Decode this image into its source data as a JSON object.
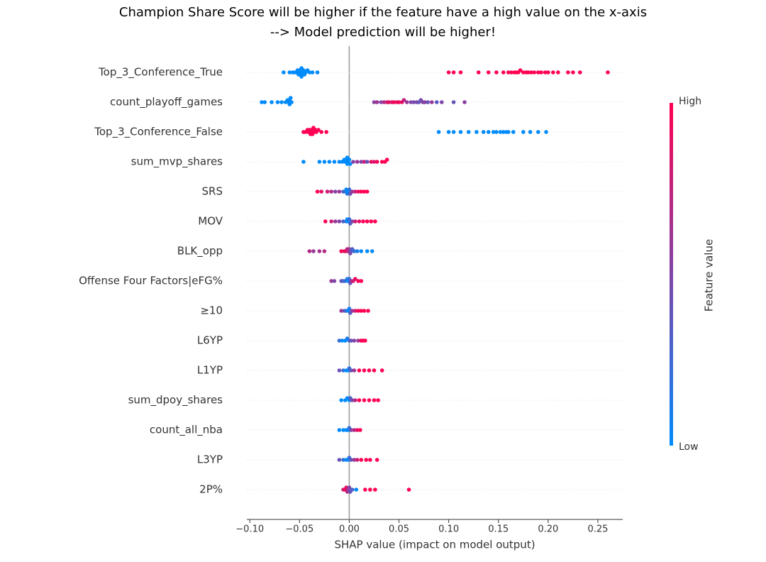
{
  "chart_data": {
    "type": "beeswarm",
    "title": "Champion Share Score will be higher if the feature have a high value on the x-axis",
    "subtitle": "--> Model prediction will be higher!",
    "x_label": "SHAP value (impact on model output)",
    "colorbar_label": "Feature value",
    "colorbar_high": "High",
    "colorbar_low": "Low",
    "colormap": [
      "#008bfb",
      "#ff0052"
    ],
    "xlim": [
      -0.103,
      0.275
    ],
    "xticks": [
      {
        "value": -0.1,
        "label": "−0.10"
      },
      {
        "value": -0.05,
        "label": "−0.05"
      },
      {
        "value": 0,
        "label": "0.00"
      },
      {
        "value": 0.05,
        "label": "0.05"
      },
      {
        "value": 0.1,
        "label": "0.10"
      },
      {
        "value": 0.15,
        "label": "0.15"
      },
      {
        "value": 0.2,
        "label": "0.20"
      },
      {
        "value": 0.25,
        "label": "0.25"
      }
    ],
    "series": [
      {
        "name": "Top_3_Conference_True",
        "shap_values": [
          -0.066,
          -0.06,
          -0.057,
          -0.055,
          -0.053,
          -0.052,
          -0.051,
          -0.05,
          -0.05,
          -0.049,
          -0.048,
          -0.048,
          -0.047,
          -0.046,
          -0.045,
          -0.044,
          -0.042,
          -0.04,
          -0.037,
          -0.032,
          0.1,
          0.105,
          0.112,
          0.13,
          0.14,
          0.148,
          0.155,
          0.16,
          0.163,
          0.166,
          0.168,
          0.17,
          0.172,
          0.175,
          0.178,
          0.18,
          0.183,
          0.186,
          0.19,
          0.193,
          0.197,
          0.2,
          0.205,
          0.21,
          0.22,
          0.225,
          0.232,
          0.26
        ],
        "feature_values": [
          0,
          0,
          0,
          0,
          0,
          0,
          0,
          0,
          0,
          0,
          0,
          0,
          0,
          0,
          0,
          0,
          0,
          0,
          0,
          0,
          1,
          1,
          1,
          1,
          1,
          1,
          1,
          1,
          1,
          1,
          1,
          1,
          1,
          1,
          1,
          1,
          1,
          1,
          1,
          1,
          1,
          1,
          1,
          1,
          1,
          1,
          1,
          1
        ]
      },
      {
        "name": "count_playoff_games",
        "shap_values": [
          -0.088,
          -0.085,
          -0.078,
          -0.072,
          -0.068,
          -0.064,
          -0.062,
          -0.061,
          -0.06,
          -0.06,
          -0.059,
          -0.058,
          0.025,
          0.028,
          0.032,
          0.035,
          0.038,
          0.04,
          0.043,
          0.045,
          0.048,
          0.05,
          0.053,
          0.055,
          0.058,
          0.062,
          0.065,
          0.068,
          0.07,
          0.072,
          0.074,
          0.076,
          0.079,
          0.083,
          0.088,
          0.093,
          0.105,
          0.116
        ],
        "feature_values": [
          0,
          0,
          0,
          0,
          0,
          0,
          0,
          0,
          0,
          0,
          0,
          0,
          0.55,
          0.6,
          0.5,
          0.7,
          0.8,
          0.9,
          0.85,
          0.95,
          0.9,
          0.95,
          0.9,
          0.75,
          0.6,
          0.5,
          0.45,
          0.5,
          0.4,
          0.45,
          0.5,
          0.55,
          0.4,
          0.6,
          0.35,
          0.5,
          0.4,
          0.55
        ]
      },
      {
        "name": "Top_3_Conference_False",
        "shap_values": [
          -0.046,
          -0.044,
          -0.042,
          -0.041,
          -0.04,
          -0.039,
          -0.038,
          -0.038,
          -0.037,
          -0.036,
          -0.035,
          -0.034,
          -0.033,
          -0.031,
          -0.028,
          -0.023,
          0.09,
          0.1,
          0.105,
          0.112,
          0.12,
          0.128,
          0.135,
          0.14,
          0.145,
          0.148,
          0.152,
          0.155,
          0.158,
          0.16,
          0.165,
          0.175,
          0.182,
          0.19,
          0.198
        ],
        "feature_values": [
          1,
          1,
          1,
          1,
          1,
          1,
          1,
          1,
          1,
          1,
          1,
          1,
          1,
          1,
          1,
          1,
          0,
          0,
          0,
          0,
          0,
          0,
          0,
          0,
          0,
          0,
          0,
          0,
          0,
          0,
          0,
          0,
          0,
          0,
          0
        ]
      },
      {
        "name": "sum_mvp_shares",
        "shap_values": [
          -0.046,
          -0.03,
          -0.025,
          -0.02,
          -0.015,
          -0.01,
          -0.007,
          -0.005,
          -0.004,
          -0.003,
          -0.002,
          -0.002,
          -0.001,
          0,
          0.001,
          0.004,
          0.008,
          0.012,
          0.015,
          0.018,
          0.022,
          0.025,
          0.028,
          0.033,
          0.036,
          0.038
        ],
        "feature_values": [
          0,
          0,
          0,
          0,
          0,
          0,
          0,
          0,
          0,
          0,
          0,
          0,
          0,
          0,
          0,
          0.5,
          0.6,
          0.5,
          0.8,
          0.4,
          0.9,
          0.85,
          0.95,
          1,
          1,
          1
        ]
      },
      {
        "name": "SRS",
        "shap_values": [
          -0.032,
          -0.028,
          -0.022,
          -0.018,
          -0.014,
          -0.01,
          -0.006,
          -0.004,
          -0.003,
          -0.002,
          -0.001,
          0,
          0.001,
          0.003,
          0.006,
          0.009,
          0.012,
          0.015,
          0.018
        ],
        "feature_values": [
          1,
          0.9,
          0.8,
          0.7,
          0.5,
          0.6,
          0.3,
          0.2,
          0,
          0.1,
          0,
          0.2,
          0.4,
          0.6,
          0.8,
          0.9,
          1,
          1,
          1
        ]
      },
      {
        "name": "MOV",
        "shap_values": [
          -0.024,
          -0.018,
          -0.014,
          -0.01,
          -0.006,
          -0.003,
          -0.002,
          -0.001,
          0,
          0.001,
          0.003,
          0.006,
          0.01,
          0.014,
          0.018,
          0.022,
          0.026
        ],
        "feature_values": [
          1,
          0.8,
          0.6,
          0.5,
          0.3,
          0.1,
          0,
          0,
          0.2,
          0.3,
          0.5,
          0.8,
          0.9,
          1,
          1,
          1,
          1
        ]
      },
      {
        "name": "BLK_opp",
        "shap_values": [
          -0.04,
          -0.036,
          -0.03,
          -0.025,
          -0.008,
          -0.005,
          -0.003,
          -0.002,
          -0.001,
          0,
          0.001,
          0.002,
          0.003,
          0.005,
          0.008,
          0.012,
          0.018,
          0.023
        ],
        "feature_values": [
          0.7,
          0.6,
          0.65,
          0.7,
          1,
          0.9,
          0.95,
          0.8,
          0.7,
          0.6,
          0.5,
          0.4,
          0.3,
          0.2,
          0.1,
          0,
          0,
          0
        ]
      },
      {
        "name": "Offense Four Factors|eFG%",
        "shap_values": [
          -0.018,
          -0.015,
          -0.008,
          -0.006,
          -0.004,
          -0.002,
          -0.001,
          0,
          0.001,
          0.002,
          0.004,
          0.006,
          0.009,
          0.012
        ],
        "feature_values": [
          0.6,
          0.5,
          0.4,
          0.3,
          0.2,
          0.1,
          0,
          0.2,
          0.4,
          0.6,
          0.8,
          0.9,
          1,
          1
        ]
      },
      {
        "name": "≥10",
        "shap_values": [
          -0.008,
          -0.005,
          -0.003,
          -0.001,
          0,
          0.001,
          0.003,
          0.006,
          0.009,
          0.012,
          0.015,
          0.019
        ],
        "feature_values": [
          0.6,
          0.4,
          0.2,
          0,
          0.1,
          0.3,
          0.6,
          0.8,
          1,
          1,
          1,
          1
        ]
      },
      {
        "name": "L6YP",
        "shap_values": [
          -0.01,
          -0.007,
          -0.004,
          -0.002,
          0,
          0.002,
          0.005,
          0.009,
          0.012,
          0.014,
          0.016
        ],
        "feature_values": [
          0.2,
          0,
          0,
          0.1,
          0.2,
          0.4,
          0.5,
          0.6,
          1,
          1,
          1
        ]
      },
      {
        "name": "L1YP",
        "shap_values": [
          -0.01,
          -0.006,
          -0.003,
          -0.001,
          0,
          0.002,
          0.005,
          0.01,
          0.015,
          0.02,
          0.025,
          0.033
        ],
        "feature_values": [
          0.4,
          0.2,
          0,
          0,
          0.2,
          0.4,
          0.6,
          1,
          1,
          1,
          1,
          1
        ]
      },
      {
        "name": "sum_dpoy_shares",
        "shap_values": [
          -0.008,
          -0.004,
          -0.002,
          0,
          0.001,
          0.003,
          0.006,
          0.01,
          0.015,
          0.02,
          0.025,
          0.029
        ],
        "feature_values": [
          0,
          0,
          0,
          0,
          0.3,
          0.5,
          0.7,
          1,
          1,
          1,
          1,
          1
        ]
      },
      {
        "name": "count_all_nba",
        "shap_values": [
          -0.01,
          -0.006,
          -0.003,
          -0.001,
          0,
          0.002,
          0.005,
          0.008,
          0.011
        ],
        "feature_values": [
          0,
          0,
          0,
          0,
          0.2,
          0.5,
          0.7,
          0.9,
          1
        ]
      },
      {
        "name": "L3YP",
        "shap_values": [
          -0.01,
          -0.006,
          -0.003,
          -0.001,
          0,
          0.002,
          0.005,
          0.008,
          0.012,
          0.017,
          0.021,
          0.028
        ],
        "feature_values": [
          0.4,
          0.2,
          0,
          0,
          0.2,
          0.4,
          0.6,
          0.8,
          1,
          1,
          1,
          1
        ]
      },
      {
        "name": "2P%",
        "shap_values": [
          -0.006,
          -0.004,
          -0.003,
          -0.002,
          -0.001,
          0,
          0.001,
          0.003,
          0.007,
          0.016,
          0.021,
          0.026,
          0.06
        ],
        "feature_values": [
          0.8,
          1,
          0.9,
          0.7,
          0.6,
          0.5,
          0.4,
          0.3,
          0,
          1,
          1,
          1,
          1
        ]
      }
    ]
  }
}
